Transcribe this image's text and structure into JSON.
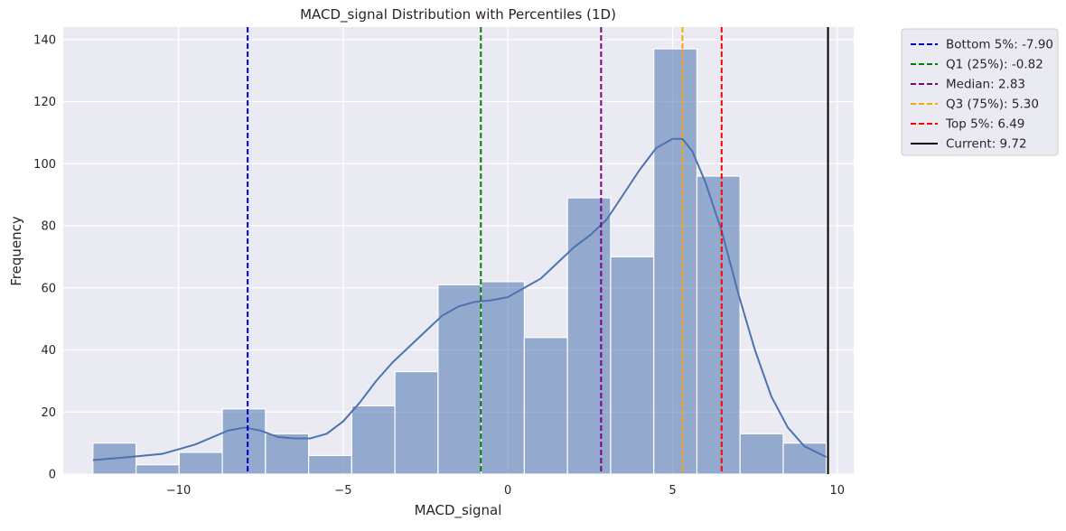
{
  "chart_data": {
    "type": "bar",
    "title": "MACD_signal Distribution with Percentiles (1D)",
    "xlabel": "MACD_signal",
    "ylabel": "Frequency",
    "xlim": [
      -13.5,
      10.5
    ],
    "ylim": [
      0,
      144
    ],
    "xticks": [
      -10,
      -5,
      0,
      5,
      10
    ],
    "xtick_labels": [
      "−10",
      "−5",
      "0",
      "5",
      "10"
    ],
    "yticks": [
      0,
      20,
      40,
      60,
      80,
      100,
      120,
      140
    ],
    "grid": true,
    "legend_position": "outside-top-right",
    "bar_color": "#4c72b0",
    "bins": [
      {
        "x0": -12.6,
        "x1": -11.29,
        "count": 10
      },
      {
        "x0": -11.29,
        "x1": -9.98,
        "count": 3
      },
      {
        "x0": -9.98,
        "x1": -8.67,
        "count": 7
      },
      {
        "x0": -8.67,
        "x1": -7.36,
        "count": 21
      },
      {
        "x0": -7.36,
        "x1": -6.05,
        "count": 13
      },
      {
        "x0": -6.05,
        "x1": -4.74,
        "count": 6
      },
      {
        "x0": -4.74,
        "x1": -3.43,
        "count": 22
      },
      {
        "x0": -3.43,
        "x1": -2.12,
        "count": 33
      },
      {
        "x0": -2.12,
        "x1": -0.81,
        "count": 61
      },
      {
        "x0": -0.81,
        "x1": 0.5,
        "count": 62
      },
      {
        "x0": 0.5,
        "x1": 1.81,
        "count": 44
      },
      {
        "x0": 1.81,
        "x1": 3.12,
        "count": 89
      },
      {
        "x0": 3.12,
        "x1": 4.43,
        "count": 70
      },
      {
        "x0": 4.43,
        "x1": 5.74,
        "count": 137
      },
      {
        "x0": 5.74,
        "x1": 7.05,
        "count": 96
      },
      {
        "x0": 7.05,
        "x1": 8.36,
        "count": 13
      },
      {
        "x0": 8.36,
        "x1": 9.67,
        "count": 10
      }
    ],
    "kde": {
      "name": "KDE",
      "color": "#4c72b0",
      "x": [
        -12.6,
        -11.5,
        -10.5,
        -9.5,
        -8.5,
        -8.0,
        -7.5,
        -7.0,
        -6.5,
        -6.0,
        -5.5,
        -5.0,
        -4.5,
        -4.0,
        -3.5,
        -3.0,
        -2.5,
        -2.0,
        -1.5,
        -1.0,
        -0.5,
        0.0,
        0.5,
        1.0,
        1.5,
        2.0,
        2.5,
        3.0,
        3.5,
        4.0,
        4.5,
        5.0,
        5.3,
        5.6,
        6.0,
        6.5,
        7.0,
        7.5,
        8.0,
        8.5,
        9.0,
        9.67
      ],
      "y": [
        4.5,
        5.5,
        6.5,
        9.5,
        14,
        15,
        14,
        12,
        11.5,
        11.5,
        13,
        17,
        23,
        30,
        36,
        41,
        46,
        51,
        54,
        55.5,
        56,
        57,
        60,
        63,
        68,
        73,
        77,
        82,
        90,
        98,
        105,
        108,
        108,
        104,
        94,
        78,
        58,
        40,
        25,
        15,
        9,
        5.5
      ]
    },
    "lines": [
      {
        "name": "Bottom 5%: -7.90",
        "value": -7.9,
        "color": "#0000cc",
        "style": "dashed"
      },
      {
        "name": "Q1 (25%): -0.82",
        "value": -0.82,
        "color": "#008000",
        "style": "dashed"
      },
      {
        "name": "Median: 2.83",
        "value": 2.83,
        "color": "#800080",
        "style": "dashed"
      },
      {
        "name": "Q3 (75%): 5.30",
        "value": 5.3,
        "color": "#ffa500",
        "style": "dashed"
      },
      {
        "name": "Top 5%: 6.49",
        "value": 6.49,
        "color": "#ff0000",
        "style": "dashed"
      },
      {
        "name": "Current: 9.72",
        "value": 9.72,
        "color": "#000000",
        "style": "solid"
      }
    ]
  }
}
